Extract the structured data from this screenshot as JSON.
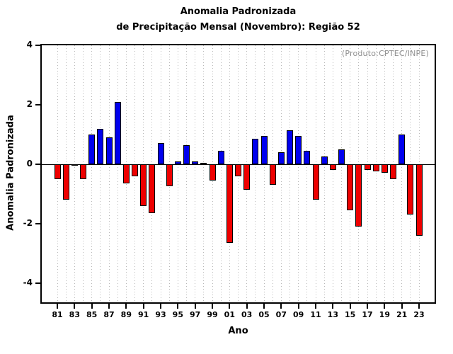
{
  "title": {
    "line1": "Anomalia Padronizada",
    "line2": "de Precipitação Mensal (Novembro): Região 52"
  },
  "annotation": "(Produto:CPTEC/INPE)",
  "chart_data": {
    "type": "bar",
    "title": "Anomalia Padronizada de Precipitação Mensal (Novembro): Região 52",
    "xlabel": "Ano",
    "ylabel": "Anomalia Padronizada",
    "ylim": [
      -4.65,
      4
    ],
    "y_ticks": [
      4,
      2,
      0,
      -2,
      -4
    ],
    "x_tick_labels": [
      "81",
      "83",
      "85",
      "87",
      "89",
      "91",
      "93",
      "95",
      "97",
      "99",
      "01",
      "03",
      "05",
      "07",
      "09",
      "11",
      "13",
      "15",
      "17",
      "19",
      "21",
      "23"
    ],
    "years": [
      1981,
      1982,
      1983,
      1984,
      1985,
      1986,
      1987,
      1988,
      1989,
      1990,
      1991,
      1992,
      1993,
      1994,
      1995,
      1996,
      1997,
      1998,
      1999,
      2000,
      2001,
      2002,
      2003,
      2004,
      2005,
      2006,
      2007,
      2008,
      2009,
      2010,
      2011,
      2012,
      2013,
      2014,
      2015,
      2016,
      2017,
      2018,
      2019,
      2020,
      2021,
      2022,
      2023
    ],
    "values": [
      -0.5,
      -1.2,
      -0.05,
      -0.5,
      1.0,
      1.2,
      0.9,
      2.1,
      -0.65,
      -0.4,
      -1.4,
      -1.65,
      0.7,
      -0.75,
      0.1,
      0.65,
      0.1,
      0.05,
      -0.55,
      0.45,
      -2.65,
      -0.4,
      -0.85,
      0.85,
      0.95,
      -0.7,
      0.4,
      1.15,
      0.95,
      0.45,
      -1.2,
      0.25,
      -0.2,
      0.5,
      -1.55,
      -2.1,
      -0.2,
      -0.25,
      -0.3,
      -0.5,
      1.0,
      -1.7,
      -2.4
    ],
    "positive_color": "#0000ee",
    "negative_color": "#ee0000",
    "grid": "vertical-dotted",
    "legend": "none",
    "annotation": "(Produto:CPTEC/INPE)"
  }
}
